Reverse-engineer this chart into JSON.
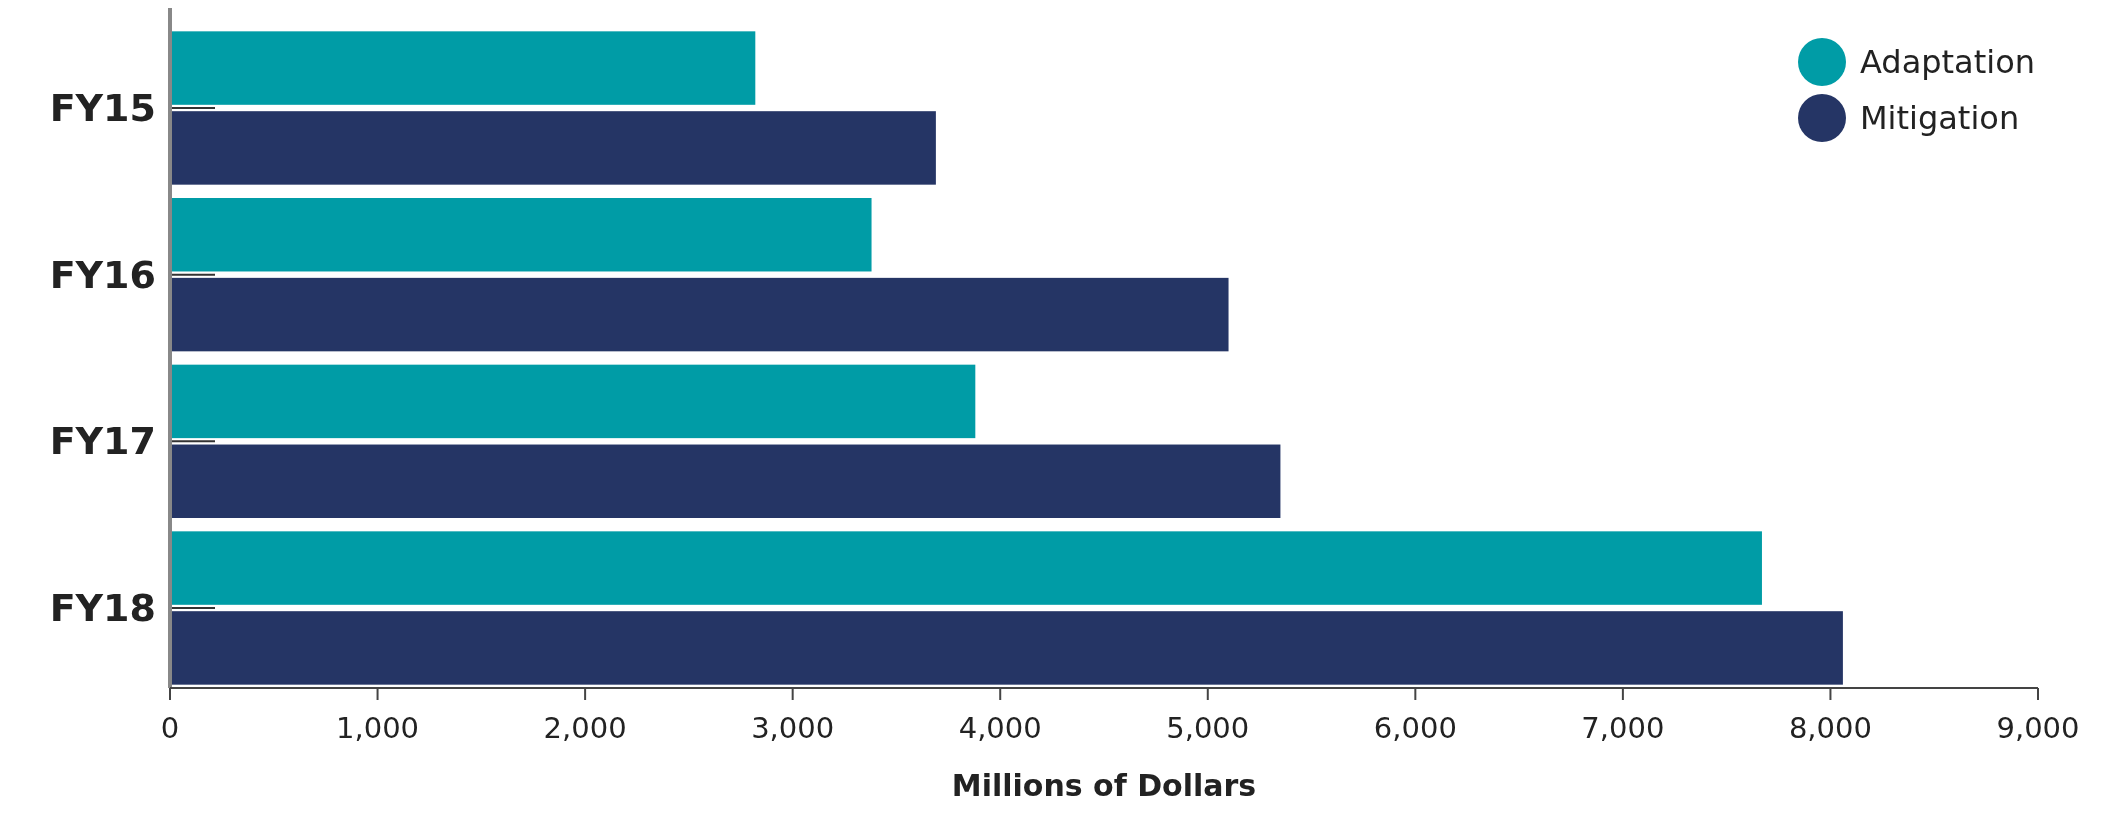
{
  "chart_data": {
    "type": "bar",
    "orientation": "horizontal",
    "xlabel": "Millions of Dollars",
    "categories": [
      "FY15",
      "FY16",
      "FY17",
      "FY18"
    ],
    "series": [
      {
        "name": "Adaptation",
        "color": "#009ca6",
        "values": [
          2820,
          3380,
          3880,
          7670
        ]
      },
      {
        "name": "Mitigation",
        "color": "#253565",
        "values": [
          3690,
          5100,
          5350,
          8060
        ]
      }
    ],
    "xlim": [
      0,
      9000
    ],
    "xticks": [
      {
        "value": 0,
        "label": "0"
      },
      {
        "value": 1000,
        "label": "1,000"
      },
      {
        "value": 2000,
        "label": "2,000"
      },
      {
        "value": 3000,
        "label": "3,000"
      },
      {
        "value": 4000,
        "label": "4,000"
      },
      {
        "value": 5000,
        "label": "5,000"
      },
      {
        "value": 6000,
        "label": "6,000"
      },
      {
        "value": 7000,
        "label": "7,000"
      },
      {
        "value": 8000,
        "label": "8,000"
      },
      {
        "value": 9000,
        "label": "9,000"
      }
    ],
    "grid": false,
    "legend": "top right"
  }
}
